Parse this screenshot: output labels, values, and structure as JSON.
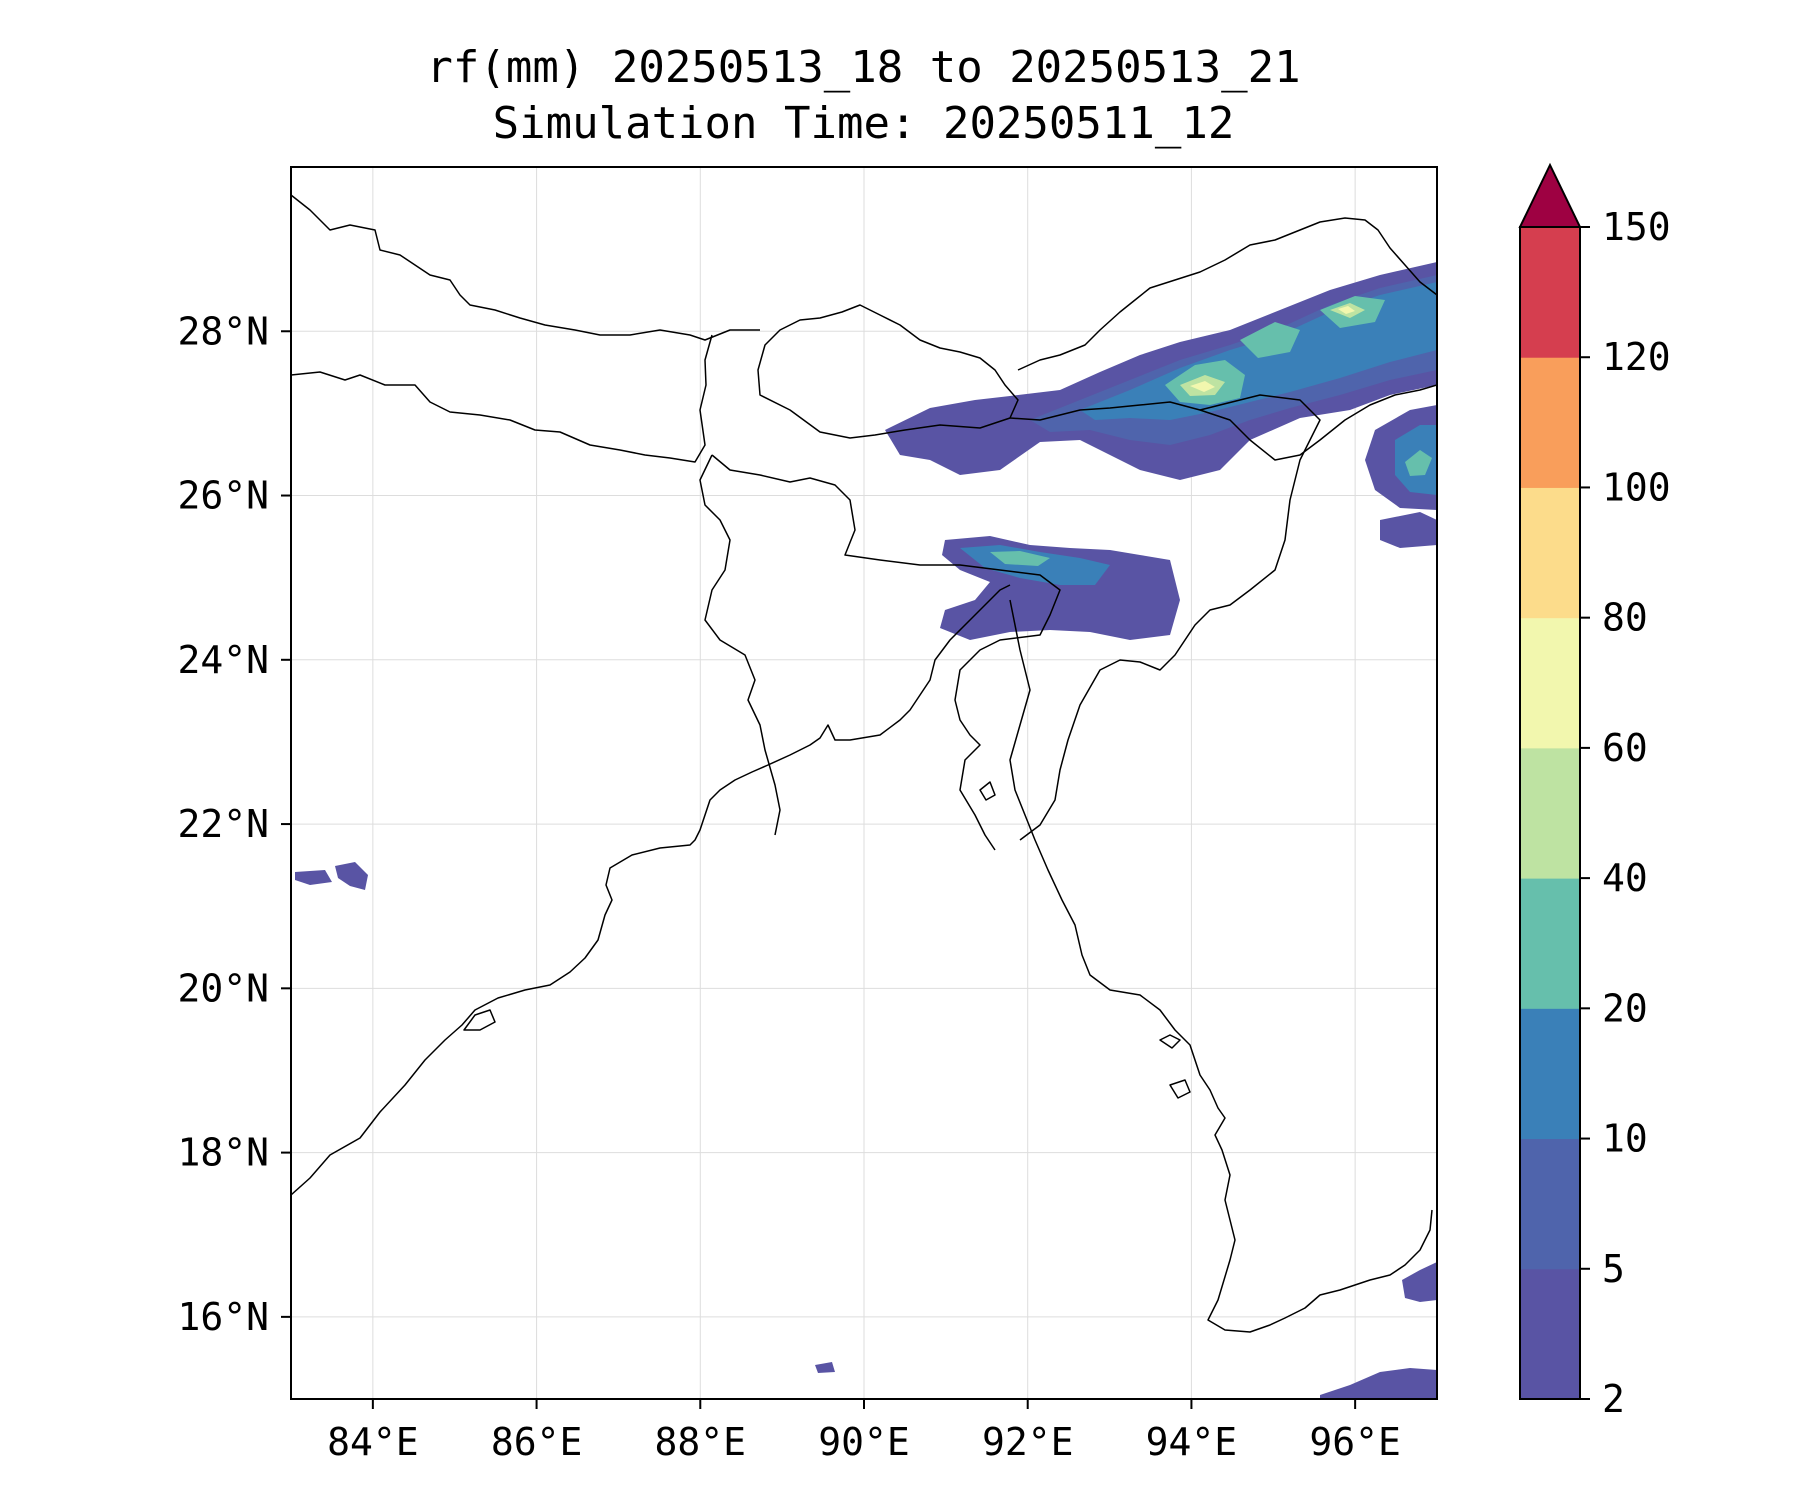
{
  "title": {
    "line1": "rf(mm) 20250513_18 to 20250513_21",
    "line2": "Simulation Time: 20250511_12"
  },
  "map": {
    "lon_range": [
      83.0,
      97.0
    ],
    "lat_range": [
      15.0,
      30.0
    ],
    "lon_ticks": [
      "84°E",
      "86°E",
      "88°E",
      "90°E",
      "92°E",
      "94°E",
      "96°E"
    ],
    "lat_ticks": [
      "16°N",
      "18°N",
      "20°N",
      "22°N",
      "24°N",
      "26°N",
      "28°N"
    ],
    "lon_tick_values": [
      84,
      86,
      88,
      90,
      92,
      94,
      96
    ],
    "lat_tick_values": [
      16,
      18,
      20,
      22,
      24,
      26,
      28
    ],
    "gridlines": true
  },
  "colorbar": {
    "unit": "mm",
    "extend": "max",
    "ticks": [
      "2",
      "5",
      "10",
      "20",
      "40",
      "60",
      "80",
      "100",
      "120",
      "150"
    ],
    "colors": [
      "#5954a4",
      "#4f64ac",
      "#3a80b8",
      "#66bfac",
      "#bee3a2",
      "#f2f7ae",
      "#fcdc8b",
      "#f99e5b",
      "#d53e4f",
      "#9e0142"
    ]
  }
}
